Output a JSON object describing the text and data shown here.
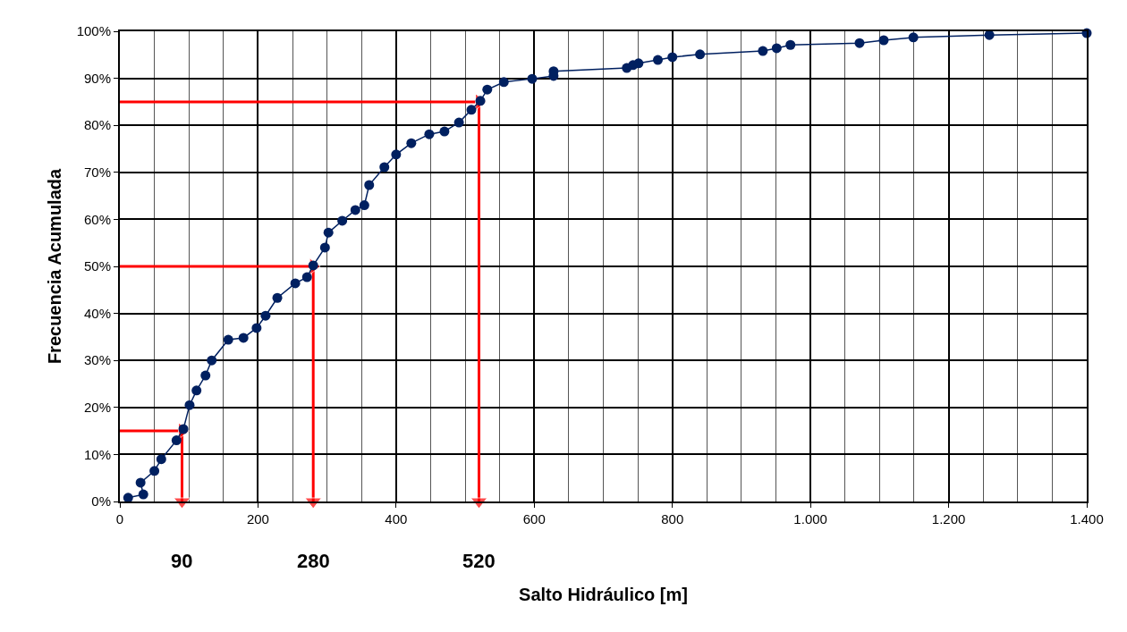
{
  "chart_data": {
    "type": "line",
    "xlabel": "Salto Hidráulico [m]",
    "ylabel": "Frecuencia Acumulada",
    "series": [
      {
        "color": "#002060",
        "x": [
          12,
          34,
          30,
          50,
          60,
          82,
          92,
          101,
          111,
          124,
          133,
          157,
          179,
          198,
          211,
          228,
          254,
          271,
          280,
          297,
          302,
          322,
          341,
          354,
          361,
          383,
          400,
          422,
          448,
          470,
          491,
          509,
          522,
          532,
          556,
          597,
          628,
          628,
          734,
          743,
          751,
          779,
          800,
          840,
          931,
          951,
          971,
          1071,
          1106,
          1149,
          1259,
          1400
        ],
        "values": [
          0.8,
          1.5,
          4,
          6.5,
          9,
          13,
          15.4,
          20.5,
          23.6,
          26.8,
          30,
          34.4,
          34.8,
          36.9,
          39.5,
          43.3,
          46.4,
          47.7,
          50.2,
          54,
          57.2,
          59.7,
          62,
          63,
          67.3,
          71.1,
          73.8,
          76.2,
          78.1,
          78.7,
          80.6,
          83.3,
          85.2,
          87.6,
          89.2,
          89.9,
          90.5,
          91.5,
          92.2,
          92.8,
          93.2,
          93.9,
          94.5,
          95.1,
          95.8,
          96.4,
          97.1,
          97.5,
          98.1,
          98.7,
          99.2,
          99.6
        ]
      },
      {
        "color": "#ff0000",
        "marker": "triangle",
        "x": [
          0,
          90,
          90
        ],
        "values": [
          15,
          15,
          0
        ]
      },
      {
        "color": "#ff0000",
        "marker": "triangle",
        "x": [
          0,
          280,
          280
        ],
        "values": [
          50,
          50,
          0
        ]
      },
      {
        "color": "#ff0000",
        "marker": "triangle",
        "x": [
          0,
          520,
          520
        ],
        "values": [
          85,
          85,
          0
        ]
      }
    ],
    "marker": "circle",
    "xlim": [
      0,
      1400
    ],
    "xticks": [
      0,
      200,
      400,
      600,
      800,
      {
        "value": 1000,
        "label": "1.000"
      },
      {
        "value": 1200,
        "label": "1.200"
      },
      {
        "value": 1400,
        "label": "1.400"
      }
    ],
    "ylim": [
      0,
      100
    ],
    "yticks": [
      {
        "value": 0,
        "label": "0%"
      },
      {
        "value": 10,
        "label": "10%"
      },
      {
        "value": 20,
        "label": "20%"
      },
      {
        "value": 30,
        "label": "30%"
      },
      {
        "value": 40,
        "label": "40%"
      },
      {
        "value": 50,
        "label": "50%"
      },
      {
        "value": 60,
        "label": "60%"
      },
      {
        "value": 70,
        "label": "70%"
      },
      {
        "value": 80,
        "label": "80%"
      },
      {
        "value": 90,
        "label": "90%"
      },
      {
        "value": 100,
        "label": "100%"
      }
    ],
    "grid": true,
    "annotations": [
      "90",
      "280",
      "520"
    ]
  }
}
